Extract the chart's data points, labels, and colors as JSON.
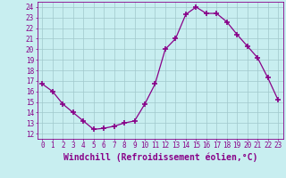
{
  "x": [
    0,
    1,
    2,
    3,
    4,
    5,
    6,
    7,
    8,
    9,
    10,
    11,
    12,
    13,
    14,
    15,
    16,
    17,
    18,
    19,
    20,
    21,
    22,
    23
  ],
  "y": [
    16.7,
    16.0,
    14.8,
    14.0,
    13.2,
    12.4,
    12.5,
    12.7,
    13.0,
    13.2,
    14.8,
    16.7,
    20.0,
    21.0,
    23.3,
    24.0,
    23.4,
    23.4,
    22.6,
    21.4,
    20.3,
    19.2,
    17.3,
    15.2
  ],
  "line_color": "#880088",
  "marker": "+",
  "marker_size": 4,
  "marker_lw": 1.2,
  "bg_color": "#c8eef0",
  "grid_color": "#a0c8cc",
  "xlabel": "Windchill (Refroidissement éolien,°C)",
  "xlabel_color": "#880088",
  "xlim": [
    -0.5,
    23.5
  ],
  "ylim": [
    11.5,
    24.5
  ],
  "yticks": [
    12,
    13,
    14,
    15,
    16,
    17,
    18,
    19,
    20,
    21,
    22,
    23,
    24
  ],
  "xticks": [
    0,
    1,
    2,
    3,
    4,
    5,
    6,
    7,
    8,
    9,
    10,
    11,
    12,
    13,
    14,
    15,
    16,
    17,
    18,
    19,
    20,
    21,
    22,
    23
  ],
  "tick_color": "#880088",
  "tick_fontsize": 5.5,
  "xlabel_fontsize": 7.0,
  "spine_color": "#880088",
  "line_width": 0.9
}
